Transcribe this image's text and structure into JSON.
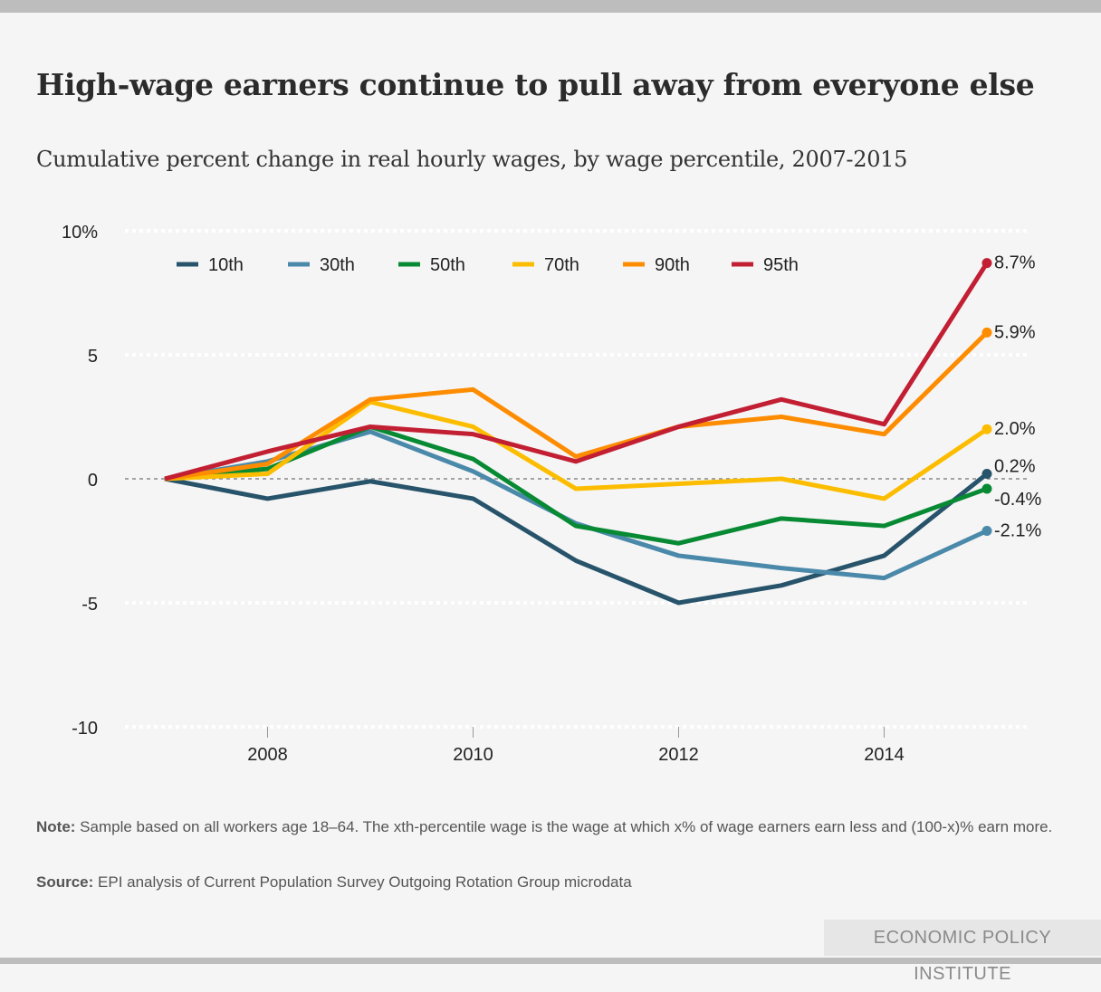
{
  "chart_data": {
    "type": "line",
    "title": "High-wage earners continue to pull away from everyone else",
    "subtitle": "Cumulative percent change in real hourly wages, by wage percentile, 2007-2015",
    "xlabel": "",
    "ylabel": "",
    "x": [
      2007,
      2008,
      2009,
      2010,
      2011,
      2012,
      2013,
      2014,
      2015
    ],
    "xlim": [
      2007,
      2015
    ],
    "ylim": [
      -10,
      10
    ],
    "x_ticks": [
      "2008",
      "2010",
      "2012",
      "2014"
    ],
    "y_ticks": [
      {
        "value": 10,
        "label": "10%"
      },
      {
        "value": 5,
        "label": "5"
      },
      {
        "value": 0,
        "label": "0"
      },
      {
        "value": -5,
        "label": "-5"
      },
      {
        "value": -10,
        "label": "-10"
      }
    ],
    "grid": true,
    "legend_placement": "top",
    "series": [
      {
        "name": "10th",
        "color": "#27536b",
        "values": [
          0,
          -0.8,
          -0.1,
          -0.8,
          -3.3,
          -5.0,
          -4.3,
          -3.1,
          0.2
        ],
        "end_label": "0.2%"
      },
      {
        "name": "30th",
        "color": "#4a89aa",
        "values": [
          0,
          0.7,
          1.9,
          0.3,
          -1.8,
          -3.1,
          -3.6,
          -4.0,
          -2.1
        ],
        "end_label": "-2.1%"
      },
      {
        "name": "50th",
        "color": "#078a33",
        "values": [
          0,
          0.4,
          2.1,
          0.8,
          -1.9,
          -2.6,
          -1.6,
          -1.9,
          -0.4
        ],
        "end_label": "-0.4%"
      },
      {
        "name": "70th",
        "color": "#fcbd00",
        "values": [
          0,
          0.2,
          3.1,
          2.1,
          -0.4,
          -0.2,
          0.0,
          -0.8,
          2.0
        ],
        "end_label": "2.0%"
      },
      {
        "name": "90th",
        "color": "#fd8c00",
        "values": [
          0,
          0.6,
          3.2,
          3.6,
          0.9,
          2.1,
          2.5,
          1.8,
          5.9
        ],
        "end_label": "5.9%"
      },
      {
        "name": "95th",
        "color": "#c21f33",
        "values": [
          0,
          1.1,
          2.1,
          1.8,
          0.7,
          2.1,
          3.2,
          2.2,
          8.7
        ],
        "end_label": "8.7%"
      }
    ]
  },
  "footer": {
    "note_label": "Note:",
    "note_text": " Sample based on all workers age 18–64. The xth-percentile wage is the wage at which x% of wage earners earn less and (100-x)% earn more.",
    "source_label": "Source:",
    "source_text": " EPI analysis of Current Population Survey Outgoing Rotation Group microdata",
    "brand": "ECONOMIC POLICY INSTITUTE"
  }
}
